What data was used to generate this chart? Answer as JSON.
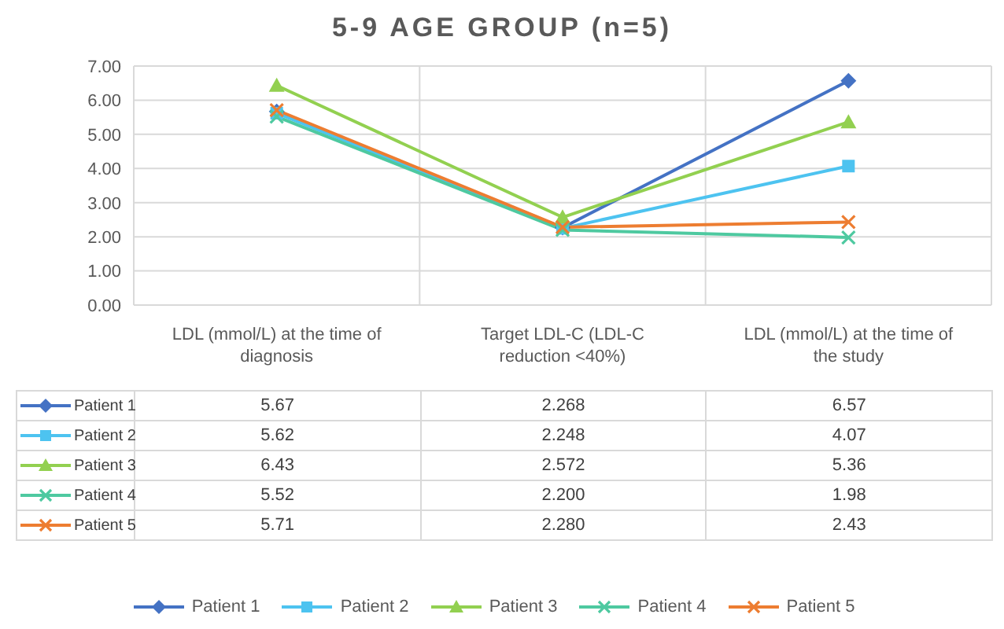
{
  "chart_data": {
    "type": "line",
    "title": "5-9 AGE GROUP (n=5)",
    "categories": [
      "LDL (mmol/L) at the time of diagnosis",
      "Target LDL-C (LDL-C reduction <40%)",
      "LDL (mmol/L) at the time of the study"
    ],
    "ylim": [
      0,
      7
    ],
    "yticks": [
      {
        "value": 0,
        "label": "0.00"
      },
      {
        "value": 1,
        "label": "1.00"
      },
      {
        "value": 2,
        "label": "2.00"
      },
      {
        "value": 3,
        "label": "3.00"
      },
      {
        "value": 4,
        "label": "4.00"
      },
      {
        "value": 5,
        "label": "5.00"
      },
      {
        "value": 6,
        "label": "6.00"
      },
      {
        "value": 7,
        "label": "7.00"
      }
    ],
    "grid": true,
    "legend": "bottom",
    "line_style": "solid",
    "series": [
      {
        "name": "Patient 1",
        "color": "#4472c4",
        "marker": "diamond",
        "values": [
          5.67,
          2.268,
          6.57
        ],
        "value_labels": [
          "5.67",
          "2.268",
          "6.57"
        ]
      },
      {
        "name": "Patient 2",
        "color": "#4dc3f0",
        "marker": "square",
        "values": [
          5.62,
          2.248,
          4.07
        ],
        "value_labels": [
          "5.62",
          "2.248",
          "4.07"
        ]
      },
      {
        "name": "Patient 3",
        "color": "#92d050",
        "marker": "triangle",
        "values": [
          6.43,
          2.572,
          5.36
        ],
        "value_labels": [
          "6.43",
          "2.572",
          "5.36"
        ]
      },
      {
        "name": "Patient 4",
        "color": "#4ec9a0",
        "marker": "cross",
        "values": [
          5.52,
          2.2,
          1.98
        ],
        "value_labels": [
          "5.52",
          "2.200",
          "1.98"
        ]
      },
      {
        "name": "Patient 5",
        "color": "#ed7d31",
        "marker": "cross",
        "values": [
          5.71,
          2.28,
          2.43
        ],
        "value_labels": [
          "5.71",
          "2.280",
          "2.43"
        ]
      }
    ]
  }
}
